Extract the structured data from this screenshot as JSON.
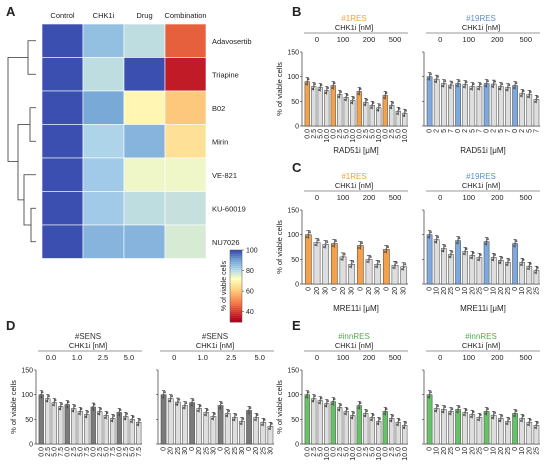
{
  "panel_labels": [
    "A",
    "B",
    "C",
    "D",
    "E"
  ],
  "heatmap": {
    "columns": [
      "Control",
      "CHK1i",
      "Drug",
      "Combination"
    ],
    "rows": [
      "Adavosertib",
      "Triapine",
      "B02",
      "Mirin",
      "VE-821",
      "KU-60019",
      "NU7026"
    ],
    "colorbar_label": "% of viable cells",
    "colorbar_ticks": [
      100,
      80,
      60,
      40
    ],
    "colorbar_range": [
      30,
      100
    ],
    "colors": {
      "high": "#3a4fb0",
      "mid": "#ffffc0",
      "low": "#b0001e"
    }
  },
  "chart_data": [
    {
      "type": "heatmap",
      "panel": "A",
      "x": [
        "Control",
        "CHK1i",
        "Drug",
        "Combination"
      ],
      "y": [
        "Adavosertib",
        "Triapine",
        "B02",
        "Mirin",
        "VE-821",
        "KU-60019",
        "NU7026"
      ],
      "values": [
        [
          100,
          86,
          80,
          44
        ],
        [
          100,
          80,
          100,
          34
        ],
        [
          100,
          90,
          70,
          60
        ],
        [
          100,
          82,
          88,
          65
        ],
        [
          100,
          84,
          74,
          74
        ],
        [
          100,
          84,
          80,
          79
        ],
        [
          100,
          88,
          88,
          77
        ]
      ],
      "colorbar_label": "% of viable cells",
      "clim": [
        30,
        100
      ]
    },
    {
      "type": "bar",
      "panel": "B",
      "title": "#1RES",
      "title_color": "#f0a040",
      "group_header": "CHK1i [nM]",
      "groups": [
        "0",
        "100",
        "200",
        "500"
      ],
      "x_tick_labels": [
        "0.0",
        "2.5",
        "5.0",
        "10.0",
        "0.0",
        "2.5",
        "5.0",
        "10.0",
        "0.0",
        "2.5",
        "5.0",
        "10.0",
        "0.0",
        "2.5",
        "5.0",
        "10.0"
      ],
      "xlabel": "RAD51i [μM]",
      "ylabel": "% of viable cells",
      "ylim": [
        0,
        150
      ],
      "values": [
        90,
        80,
        78,
        72,
        82,
        64,
        58,
        52,
        70,
        48,
        42,
        37,
        62,
        42,
        30,
        26
      ]
    },
    {
      "type": "bar",
      "panel": "B",
      "title": "#19RES",
      "title_color": "#5b8fd6",
      "group_header": "CHK1i [nM]",
      "groups": [
        "0",
        "100",
        "200",
        "500"
      ],
      "x_tick_labels": [
        "0",
        "2",
        "5",
        "7",
        "0",
        "2",
        "5",
        "7",
        "0",
        "2",
        "5",
        "7",
        "0",
        "2",
        "5",
        "7"
      ],
      "xlabel": "RAD51i [μM]",
      "ylabel": "",
      "ylim": [
        0,
        150
      ],
      "values": [
        100,
        95,
        86,
        83,
        86,
        84,
        80,
        80,
        86,
        85,
        80,
        78,
        82,
        66,
        64,
        54
      ]
    },
    {
      "type": "bar",
      "panel": "C",
      "title": "#1RES",
      "title_color": "#f0a040",
      "group_header": "CHK1i [nM]",
      "groups": [
        "0",
        "100",
        "200",
        "500"
      ],
      "x_tick_labels": [
        "0",
        "20",
        "30",
        "0",
        "20",
        "30",
        "0",
        "20",
        "30",
        "0",
        "20",
        "30"
      ],
      "xlabel": "MRE11i [μM]",
      "ylabel": "% of viable cells",
      "ylim": [
        0,
        150
      ],
      "values": [
        100,
        84,
        80,
        82,
        55,
        40,
        78,
        50,
        40,
        70,
        38,
        35
      ]
    },
    {
      "type": "bar",
      "panel": "C",
      "title": "#19RES",
      "title_color": "#5b8fd6",
      "group_header": "CHK1i [nM]",
      "groups": [
        "0",
        "100",
        "200",
        "500"
      ],
      "x_tick_labels": [
        "0",
        "10",
        "20",
        "25",
        "0",
        "10",
        "20",
        "25",
        "0",
        "10",
        "20",
        "25",
        "0",
        "10",
        "20",
        "25"
      ],
      "xlabel": "MRE11i [μM]",
      "ylabel": "",
      "ylim": [
        0,
        150
      ],
      "values": [
        100,
        90,
        72,
        60,
        88,
        66,
        58,
        54,
        86,
        54,
        48,
        44,
        82,
        44,
        36,
        28
      ]
    },
    {
      "type": "bar",
      "panel": "D",
      "title": "#SENS",
      "title_color": "#333333",
      "group_header": "CHK1i [nM]",
      "groups": [
        "0.0",
        "1.0",
        "2.5",
        "5.0"
      ],
      "x_tick_labels": [
        "0.0",
        "2.5",
        "5.0",
        "7.5",
        "0.0",
        "2.5",
        "5.0",
        "7.5",
        "0.0",
        "2.5",
        "5.0",
        "7.5",
        "0.0",
        "2.5",
        "5.0",
        "7.5"
      ],
      "xlabel": "RAD51i [μM]",
      "ylabel": "% of viable cells",
      "ylim": [
        0,
        150
      ],
      "values": [
        100,
        92,
        84,
        76,
        80,
        72,
        66,
        60,
        75,
        66,
        58,
        52,
        64,
        56,
        50,
        44
      ]
    },
    {
      "type": "bar",
      "panel": "D",
      "title": "#SENS",
      "title_color": "#333333",
      "group_header": "CHK1i [nM]",
      "groups": [
        "0",
        "1.0",
        "2.5",
        "5.0"
      ],
      "x_tick_labels": [
        "0",
        "20",
        "25",
        "30",
        "0",
        "20",
        "25",
        "30",
        "0",
        "20",
        "25",
        "30",
        "0",
        "20",
        "25",
        "30"
      ],
      "xlabel": "MRE11i [μM]",
      "ylabel": "",
      "ylim": [
        0,
        150
      ],
      "values": [
        100,
        92,
        85,
        78,
        84,
        72,
        64,
        56,
        78,
        62,
        54,
        46,
        68,
        54,
        44,
        36
      ]
    },
    {
      "type": "bar",
      "panel": "E",
      "title": "#innRES",
      "title_color": "#4cb04c",
      "group_header": "CHK1i [nM]",
      "groups": [
        "0",
        "100",
        "200",
        "500"
      ],
      "x_tick_labels": [
        "0.0",
        "2.5",
        "5.0",
        "10.0",
        "0.0",
        "2.5",
        "5.0",
        "10.0",
        "0.0",
        "2.5",
        "5.0",
        "10.0",
        "0.0",
        "2.5",
        "5.0",
        "10.0"
      ],
      "xlabel": "RAD51i [μM]",
      "ylabel": "% of viable cells",
      "ylim": [
        0,
        150
      ],
      "values": [
        100,
        92,
        88,
        82,
        86,
        74,
        66,
        58,
        78,
        62,
        54,
        46,
        66,
        52,
        44,
        38
      ]
    },
    {
      "type": "bar",
      "panel": "E",
      "title": "#innRES",
      "title_color": "#4cb04c",
      "group_header": "CHK1i [nM]",
      "groups": [
        "0",
        "100",
        "200",
        "500"
      ],
      "x_tick_labels": [
        "0",
        "10",
        "20",
        "25",
        "0",
        "10",
        "20",
        "25",
        "0",
        "10",
        "20",
        "25",
        "0",
        "10",
        "20",
        "25"
      ],
      "xlabel": "MRE11i [μM]",
      "ylabel": "",
      "ylim": [
        0,
        150
      ],
      "values": [
        100,
        72,
        70,
        66,
        70,
        64,
        60,
        54,
        66,
        58,
        52,
        46,
        62,
        52,
        44,
        38
      ]
    }
  ],
  "bar_colors": {
    "#1RES": "#f5a04a",
    "#19RES": "#7ea8e0",
    "#SENS": "#7a7a7a",
    "#innRES": "#66c266",
    "default": "#dcdcdc"
  }
}
